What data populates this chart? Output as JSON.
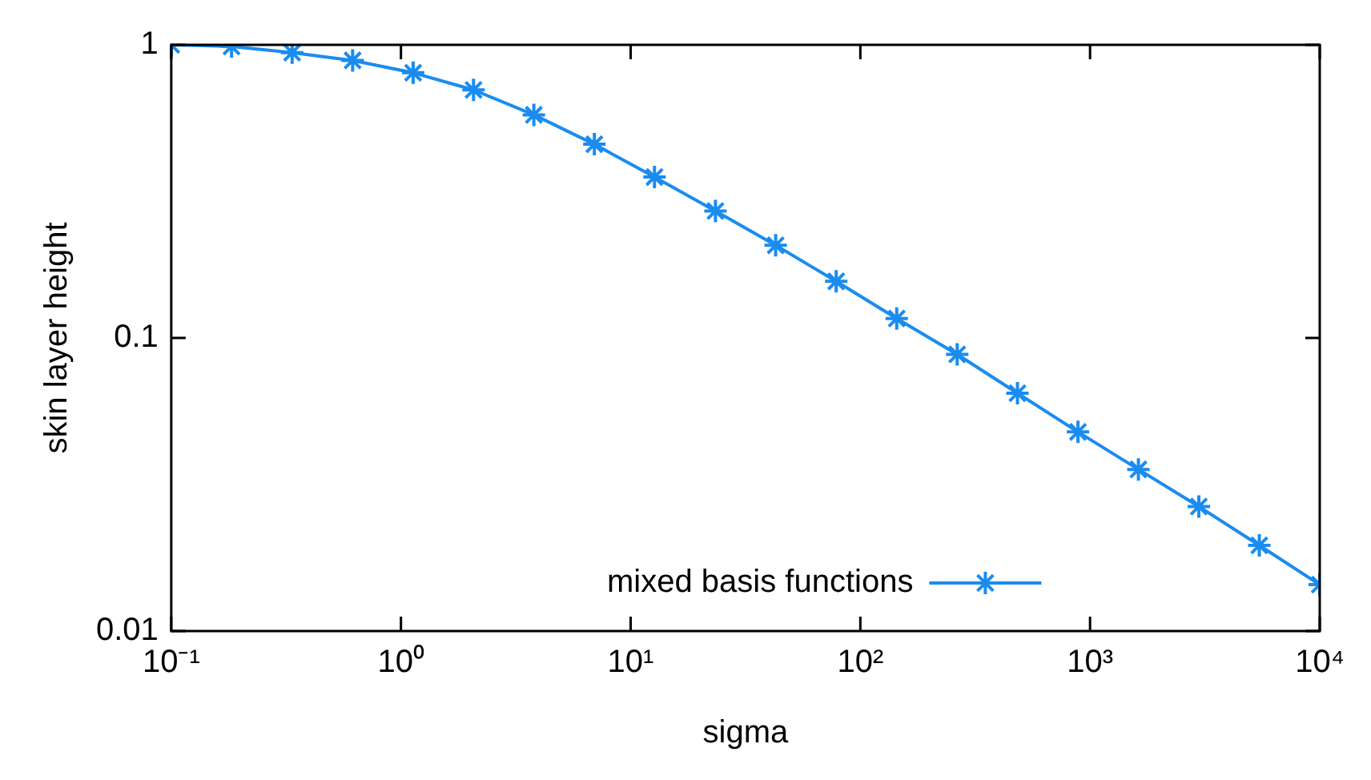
{
  "chart_data": {
    "type": "line",
    "xlabel": "sigma",
    "ylabel": "skin layer height",
    "log": "xy",
    "grid": false,
    "legend": "bottom",
    "marker": "cross",
    "line_style": "solid",
    "x": [
      0.1,
      0.183,
      0.336,
      0.616,
      1.13,
      2.07,
      3.79,
      6.95,
      12.7,
      23.4,
      42.8,
      78.5,
      144,
      264,
      483,
      886,
      1624,
      2976,
      5456,
      10000
    ],
    "series": [
      {
        "name": "mixed basis functions",
        "color": "#1a8cf0",
        "values": [
          1.0,
          0.988,
          0.941,
          0.885,
          0.803,
          0.702,
          0.577,
          0.458,
          0.354,
          0.271,
          0.207,
          0.156,
          0.1165,
          0.0879,
          0.0648,
          0.0478,
          0.0356,
          0.0266,
          0.0196,
          0.0144
        ]
      }
    ],
    "xlim": [
      0.1,
      10000
    ],
    "xticks": [
      {
        "value": 0.1,
        "label": "10⁻¹"
      },
      {
        "value": 1,
        "label": "10⁰"
      },
      {
        "value": 10,
        "label": "10¹"
      },
      {
        "value": 100,
        "label": "10²"
      },
      {
        "value": 1000,
        "label": "10³"
      },
      {
        "value": 10000,
        "label": "10⁴"
      }
    ],
    "ylim": [
      0.01,
      1
    ],
    "yticks": [
      0.01,
      0.1,
      1
    ]
  }
}
